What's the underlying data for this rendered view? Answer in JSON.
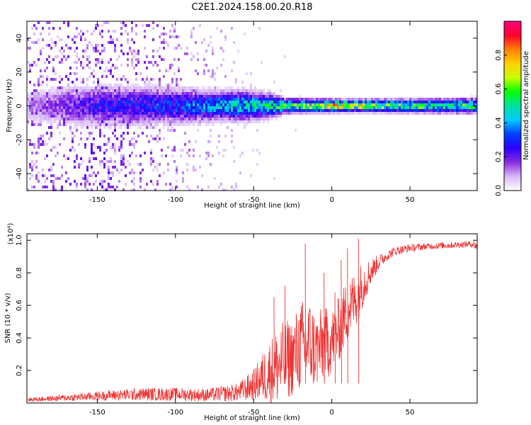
{
  "title": "C2E1.2024.158.00.20.R18",
  "chart_data": [
    {
      "type": "heatmap",
      "xlabel": "Height of straight line (km)",
      "ylabel": "Frequency (Hz)",
      "xlim": [
        -195,
        93
      ],
      "ylim": [
        -50,
        50
      ],
      "x_ticks": [
        -150,
        -100,
        -50,
        0,
        50
      ],
      "y_ticks": [
        -40,
        -20,
        0,
        20,
        40
      ],
      "colorbar": {
        "label": "Normalized spectral amplitude",
        "range": [
          0,
          1
        ],
        "ticks": [
          0.0,
          0.2,
          0.4,
          0.6,
          0.8
        ],
        "colors": [
          "#ffffff",
          "#d8b8f8",
          "#8a2be2",
          "#2a00ff",
          "#0040ff",
          "#00c8ff",
          "#00e0a0",
          "#00ff00",
          "#c8ff00",
          "#ffd000",
          "#ff8000",
          "#ff0030",
          "#ff0080"
        ]
      },
      "profile": {
        "x_knots": [
          -195,
          -150,
          -100,
          -75,
          -55,
          -40,
          -30,
          -10,
          0,
          15,
          40,
          93
        ],
        "band_halfwidth_hz": [
          6,
          7,
          6,
          5,
          5,
          4,
          2.5,
          2.2,
          2.0,
          2.0,
          2.2,
          2.5
        ],
        "peak_amplitude": [
          0.12,
          0.28,
          0.35,
          0.45,
          0.5,
          0.55,
          0.6,
          0.72,
          0.92,
          0.78,
          0.62,
          0.58
        ],
        "scatter_amplitude": [
          0.35,
          0.45,
          0.28,
          0.18,
          0.06,
          0.03,
          0.01,
          0.0,
          0.0,
          0.0,
          0.0,
          0.0
        ]
      },
      "grid": false
    },
    {
      "type": "line",
      "xlabel": "Height of straight line (km)",
      "ylabel": "SNR (10 * v/v)",
      "y_multiplier": "(x10⁴)",
      "xlim": [
        -195,
        93
      ],
      "ylim": [
        0,
        1.04
      ],
      "x_ticks": [
        -150,
        -100,
        -50,
        0,
        50
      ],
      "y_ticks": [
        0.2,
        0.4,
        0.6,
        0.8,
        1.0
      ],
      "color": "#ee3333",
      "series": [
        {
          "x": [
            -195,
            -180,
            -160,
            -140,
            -120,
            -100,
            -80,
            -60,
            -50,
            -45,
            -40,
            -35,
            -30,
            -25,
            -20,
            -15,
            -10,
            -5,
            0,
            5,
            10,
            15,
            20,
            25,
            30,
            35,
            40,
            50,
            60,
            70,
            80,
            90,
            93
          ],
          "y": [
            0.02,
            0.025,
            0.035,
            0.045,
            0.05,
            0.05,
            0.045,
            0.06,
            0.1,
            0.14,
            0.17,
            0.2,
            0.23,
            0.26,
            0.32,
            0.34,
            0.3,
            0.33,
            0.36,
            0.44,
            0.55,
            0.62,
            0.72,
            0.8,
            0.86,
            0.9,
            0.93,
            0.95,
            0.96,
            0.965,
            0.97,
            0.975,
            0.96
          ],
          "noise_amplitude": [
            0.015,
            0.02,
            0.03,
            0.04,
            0.05,
            0.05,
            0.05,
            0.07,
            0.12,
            0.18,
            0.25,
            0.3,
            0.32,
            0.3,
            0.35,
            0.36,
            0.3,
            0.3,
            0.25,
            0.25,
            0.25,
            0.22,
            0.18,
            0.1,
            0.06,
            0.04,
            0.035,
            0.03,
            0.025,
            0.025,
            0.025,
            0.025,
            0.04
          ]
        }
      ],
      "spikes": [
        {
          "x": -37,
          "y": 0.65
        },
        {
          "x": -30,
          "y": 0.72
        },
        {
          "x": -17,
          "y": 0.98
        },
        {
          "x": -5,
          "y": 0.8
        },
        {
          "x": 2,
          "y": 0.68
        },
        {
          "x": 10,
          "y": 0.95
        },
        {
          "x": 17,
          "y": 1.01
        },
        {
          "x": 6,
          "y": 0.88
        }
      ],
      "grid": false
    }
  ]
}
